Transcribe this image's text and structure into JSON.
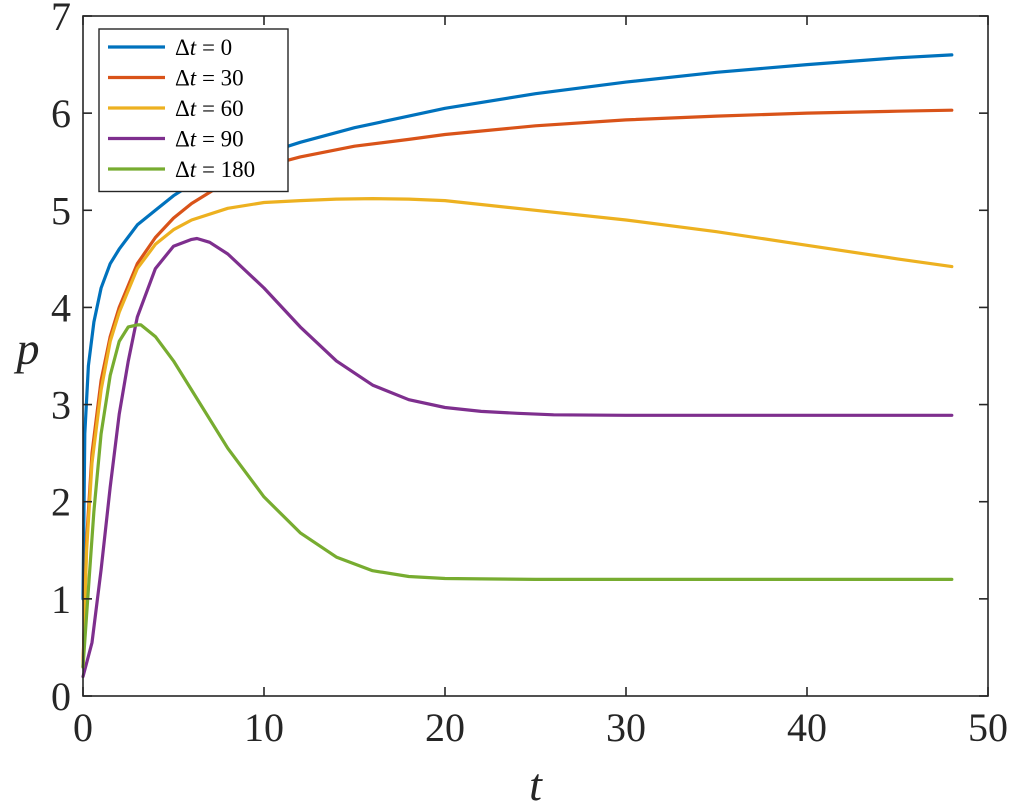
{
  "chart_data": {
    "type": "line",
    "title": "",
    "xlabel": "t",
    "ylabel": "p",
    "xlim": [
      0,
      50
    ],
    "ylim": [
      0,
      7
    ],
    "xticks": [
      "0",
      "10",
      "20",
      "30",
      "40",
      "50"
    ],
    "yticks": [
      "0",
      "1",
      "2",
      "3",
      "4",
      "5",
      "6",
      "7"
    ],
    "grid": false,
    "legend_position": "top-left",
    "series": [
      {
        "name": "Δt = 0",
        "legend_symbol": "Δ",
        "legend_var": "t",
        "legend_value": "= 0",
        "color": "#0072BD",
        "x": [
          0,
          0.1,
          0.3,
          0.6,
          1,
          1.5,
          2,
          3,
          4,
          5,
          6,
          8,
          10,
          12,
          15,
          18,
          20,
          25,
          30,
          35,
          40,
          45,
          48
        ],
        "y": [
          1.0,
          2.7,
          3.4,
          3.85,
          4.2,
          4.45,
          4.6,
          4.85,
          5.0,
          5.15,
          5.27,
          5.45,
          5.58,
          5.7,
          5.85,
          5.97,
          6.05,
          6.2,
          6.32,
          6.42,
          6.5,
          6.57,
          6.6
        ]
      },
      {
        "name": "Δt = 30",
        "legend_symbol": "Δ",
        "legend_var": "t",
        "legend_value": "= 30",
        "color": "#D95319",
        "x": [
          0,
          0.2,
          0.5,
          1,
          1.5,
          2,
          3,
          4,
          5,
          6,
          8,
          10,
          12,
          15,
          18,
          20,
          25,
          30,
          35,
          40,
          45,
          48
        ],
        "y": [
          0.3,
          1.6,
          2.5,
          3.25,
          3.7,
          4.0,
          4.45,
          4.72,
          4.92,
          5.07,
          5.3,
          5.45,
          5.55,
          5.66,
          5.73,
          5.78,
          5.87,
          5.93,
          5.97,
          6.0,
          6.02,
          6.03
        ]
      },
      {
        "name": "Δt = 60",
        "legend_symbol": "Δ",
        "legend_var": "t",
        "legend_value": "= 60",
        "color": "#EDB120",
        "x": [
          0,
          0.2,
          0.5,
          1,
          1.5,
          2,
          3,
          4,
          5,
          6,
          8,
          10,
          12,
          14,
          16,
          18,
          20,
          25,
          30,
          35,
          40,
          45,
          48
        ],
        "y": [
          0.3,
          1.5,
          2.4,
          3.15,
          3.65,
          3.95,
          4.4,
          4.65,
          4.8,
          4.9,
          5.02,
          5.08,
          5.1,
          5.115,
          5.12,
          5.115,
          5.1,
          5.0,
          4.9,
          4.78,
          4.64,
          4.5,
          4.42
        ]
      },
      {
        "name": "Δt = 90",
        "legend_symbol": "Δ",
        "legend_var": "t",
        "legend_value": "= 90",
        "color": "#7E2F8E",
        "x": [
          0,
          0.5,
          1,
          1.5,
          2,
          2.5,
          3,
          4,
          5,
          6,
          6.3,
          7,
          8,
          10,
          12,
          14,
          16,
          18,
          20,
          22,
          24,
          26,
          30,
          35,
          40,
          48
        ],
        "y": [
          0.2,
          0.55,
          1.3,
          2.15,
          2.9,
          3.45,
          3.9,
          4.4,
          4.63,
          4.7,
          4.71,
          4.67,
          4.55,
          4.2,
          3.8,
          3.45,
          3.2,
          3.05,
          2.97,
          2.93,
          2.91,
          2.895,
          2.89,
          2.89,
          2.89,
          2.89
        ]
      },
      {
        "name": "Δt = 180",
        "legend_symbol": "Δ",
        "legend_var": "t",
        "legend_value": "= 180",
        "color": "#77AC30",
        "x": [
          0,
          0.3,
          0.6,
          1,
          1.5,
          2,
          2.5,
          3,
          3.2,
          4,
          5,
          6,
          8,
          10,
          12,
          14,
          16,
          18,
          20,
          22,
          25,
          30,
          40,
          48
        ],
        "y": [
          0.3,
          1.1,
          1.9,
          2.7,
          3.3,
          3.65,
          3.8,
          3.82,
          3.82,
          3.7,
          3.45,
          3.15,
          2.55,
          2.05,
          1.68,
          1.43,
          1.29,
          1.23,
          1.21,
          1.205,
          1.2,
          1.2,
          1.2,
          1.2
        ]
      }
    ]
  }
}
